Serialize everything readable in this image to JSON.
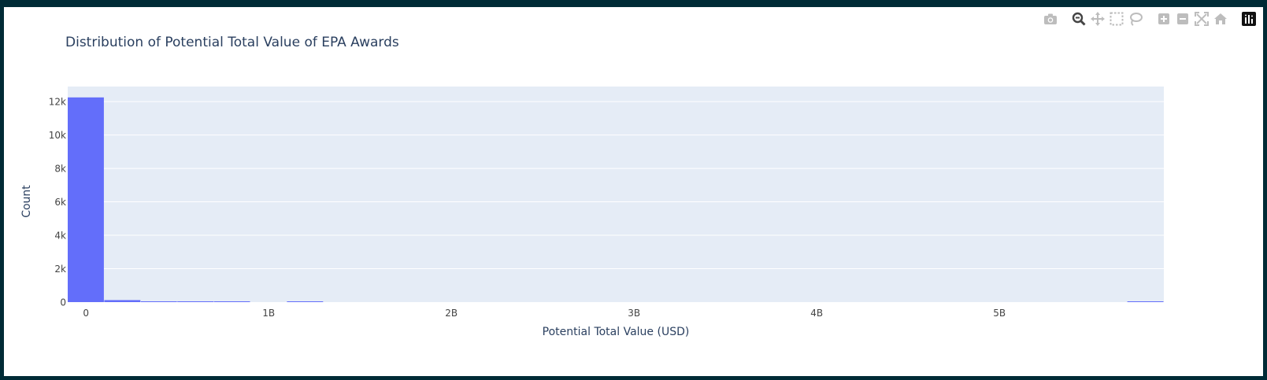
{
  "chart_data": {
    "type": "histogram",
    "title": "Distribution of Potential Total Value of EPA Awards",
    "xlabel": "Potential Total Value (USD)",
    "ylabel": "Count",
    "x_range": [
      -100000000,
      5900000000
    ],
    "y_range": [
      0,
      12900
    ],
    "x_ticks": [
      {
        "value": 0,
        "label": "0"
      },
      {
        "value": 1000000000,
        "label": "1B"
      },
      {
        "value": 2000000000,
        "label": "2B"
      },
      {
        "value": 3000000000,
        "label": "3B"
      },
      {
        "value": 4000000000,
        "label": "4B"
      },
      {
        "value": 5000000000,
        "label": "5B"
      }
    ],
    "y_ticks": [
      {
        "value": 0,
        "label": "0"
      },
      {
        "value": 2000,
        "label": "2k"
      },
      {
        "value": 4000,
        "label": "4k"
      },
      {
        "value": 6000,
        "label": "6k"
      },
      {
        "value": 8000,
        "label": "8k"
      },
      {
        "value": 10000,
        "label": "10k"
      },
      {
        "value": 12000,
        "label": "12k"
      }
    ],
    "bins": [
      {
        "x0": -100000000,
        "x1": 100000000,
        "count": 12250
      },
      {
        "x0": 100000000,
        "x1": 300000000,
        "count": 120
      },
      {
        "x0": 300000000,
        "x1": 500000000,
        "count": 30
      },
      {
        "x0": 500000000,
        "x1": 700000000,
        "count": 20
      },
      {
        "x0": 700000000,
        "x1": 900000000,
        "count": 12
      },
      {
        "x0": 1100000000,
        "x1": 1300000000,
        "count": 15
      },
      {
        "x0": 5700000000,
        "x1": 5900000000,
        "count": 10
      }
    ],
    "bar_color": "#636efa",
    "plot_bg": "#e5ecf6",
    "grid": true,
    "legend": false
  },
  "colors": {
    "text": "#2a3f5f",
    "tick_text": "#444444",
    "gridline": "#ffffff",
    "modebar_icon": "#bdbdbd",
    "modebar_active": "#444444"
  },
  "modebar": [
    {
      "name": "camera-icon",
      "glyph": "📷",
      "title": "Download plot as a png"
    },
    {
      "name": "zoom-icon",
      "glyph": "🔍",
      "title": "Zoom"
    },
    {
      "name": "pan-icon",
      "glyph": "✥",
      "title": "Pan"
    },
    {
      "name": "box-select-icon",
      "glyph": "⬚",
      "title": "Box Select"
    },
    {
      "name": "lasso-select-icon",
      "glyph": "◌",
      "title": "Lasso Select"
    },
    {
      "name": "zoom-in-icon",
      "glyph": "⊞",
      "title": "Zoom in"
    },
    {
      "name": "zoom-out-icon",
      "glyph": "⊟",
      "title": "Zoom out"
    },
    {
      "name": "autoscale-icon",
      "glyph": "⤧",
      "title": "Autoscale"
    },
    {
      "name": "reset-axes-icon",
      "glyph": "⌂",
      "title": "Reset axes"
    },
    {
      "name": "plotly-logo-icon",
      "glyph": "▥",
      "title": "Produced with Plotly"
    }
  ]
}
